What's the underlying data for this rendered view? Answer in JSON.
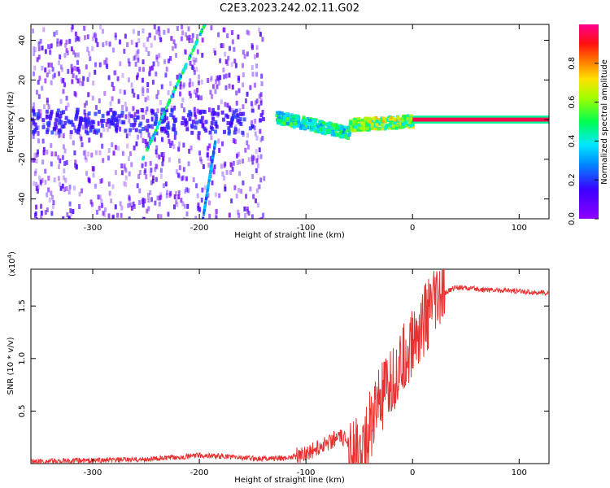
{
  "title": "C2E3.2023.242.02.11.G02",
  "colors": {
    "snr_line": "#e83232",
    "frame": "#000000"
  },
  "chart_data": [
    {
      "type": "heatmap",
      "xlabel": "Height of straight line (km)",
      "ylabel": "Frequency (Hz)",
      "xlim": [
        -358,
        128
      ],
      "ylim": [
        -50,
        48
      ],
      "x_ticks": [
        -300,
        -200,
        -100,
        0,
        100
      ],
      "y_ticks": [
        -40,
        -20,
        0,
        20,
        40
      ],
      "colorbar": {
        "label": "Normalized spectral amplitude",
        "range": [
          0.0,
          1.0
        ],
        "ticks": [
          0.0,
          0.2,
          0.4,
          0.6,
          0.8
        ],
        "colormap": "rainbow (purple-blue-cyan-green-yellow-red-magenta)"
      },
      "features": [
        {
          "x_range": [
            -358,
            -140
          ],
          "freq": [
            -50,
            48
          ],
          "amplitude": 0.1,
          "note": "scattered noise"
        },
        {
          "x_range": [
            -130,
            -60
          ],
          "freq_center": [
            2,
            -6
          ],
          "amplitude": 0.45
        },
        {
          "x_range": [
            -60,
            0
          ],
          "freq_center": [
            -2,
            0
          ],
          "amplitude": 0.6
        },
        {
          "x_range": [
            0,
            128
          ],
          "freq_center": [
            0,
            0
          ],
          "amplitude": 0.95
        }
      ]
    },
    {
      "type": "line",
      "xlabel": "Height of straight line (km)",
      "ylabel": "SNR (10 * v/v)",
      "y_scale_note": "(x10",
      "y_scale_exp": "4",
      "xlim": [
        -358,
        128
      ],
      "ylim": [
        0,
        1.85
      ],
      "x_ticks": [
        -300,
        -200,
        -100,
        0,
        100
      ],
      "y_ticks": [
        "0.5",
        "1.0",
        "1.5"
      ],
      "y_tick_values": [
        0.5,
        1.0,
        1.5
      ],
      "series": [
        {
          "x": [
            -358,
            -300,
            -250,
            -220,
            -200,
            -180,
            -150,
            -120,
            -100,
            -90,
            -80,
            -70,
            -60,
            -50,
            -45,
            -40,
            -35,
            -30,
            -25,
            -20,
            -15,
            -10,
            -5,
            0,
            10,
            20,
            30,
            40,
            50,
            60,
            80,
            100,
            128
          ],
          "values": [
            0.02,
            0.03,
            0.04,
            0.06,
            0.08,
            0.07,
            0.05,
            0.05,
            0.1,
            0.14,
            0.2,
            0.25,
            0.22,
            0.05,
            0.15,
            0.35,
            0.5,
            0.6,
            0.65,
            0.75,
            0.85,
            0.95,
            1.05,
            1.15,
            1.35,
            1.5,
            1.62,
            1.68,
            1.67,
            1.66,
            1.65,
            1.64,
            1.62
          ]
        }
      ]
    }
  ]
}
